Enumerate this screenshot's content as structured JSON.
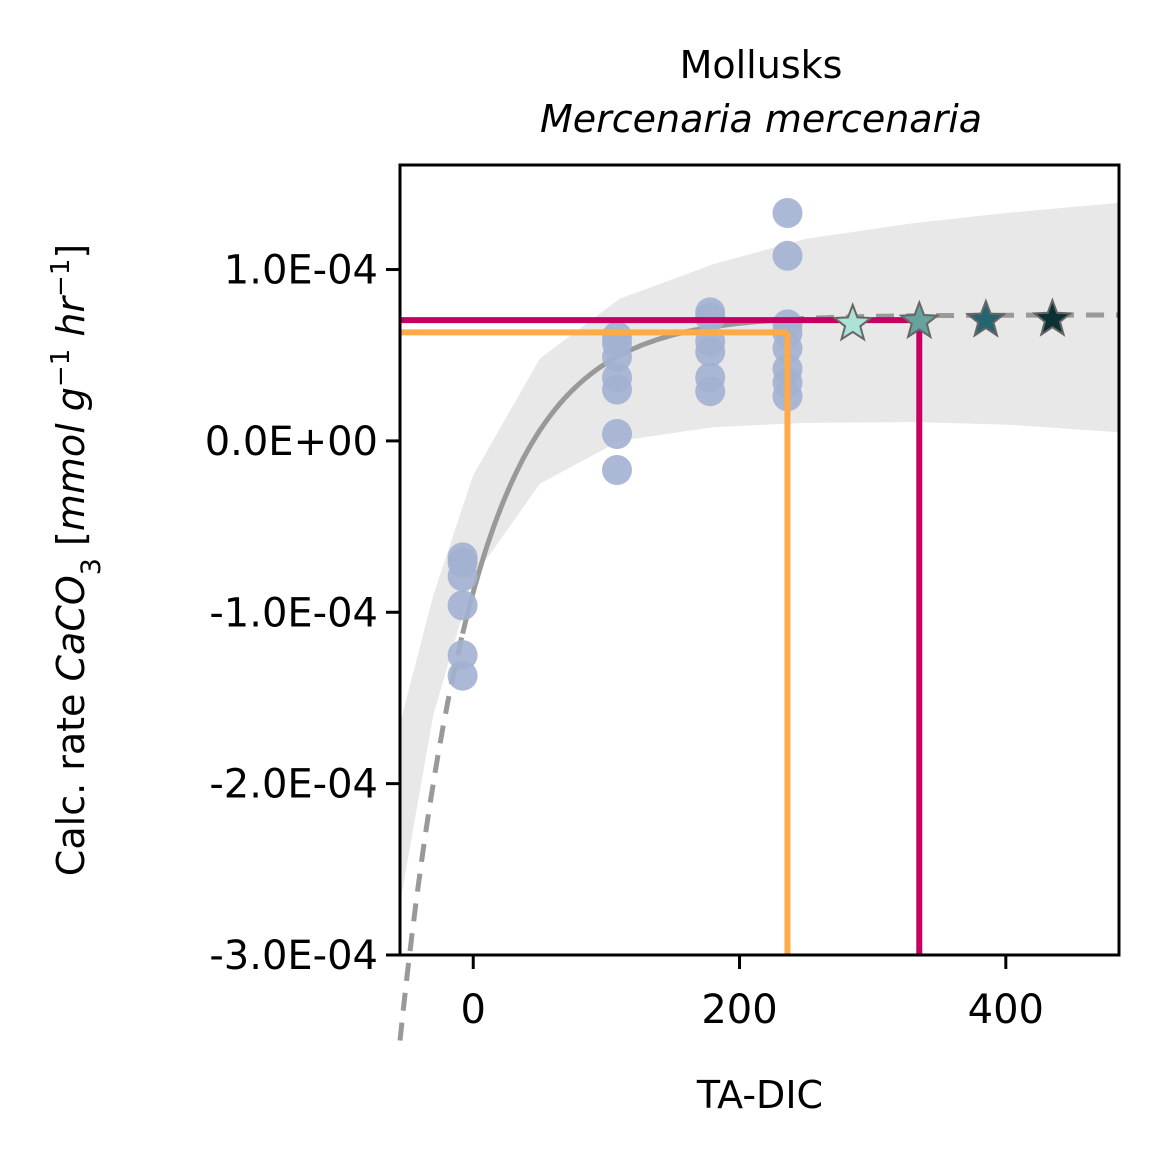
{
  "chart_data": {
    "type": "scatter",
    "title": "Mollusks",
    "subtitle": "Mercenaria mercenaria",
    "xlabel": "TA-DIC",
    "ylabel": {
      "prefix": "Calc. rate ",
      "chem": "CaCO",
      "chem_sub": "3",
      "open": " [",
      "unit1": "mmol g",
      "exp1": "−1",
      "unit2": " hr",
      "exp2": "−1",
      "close": "]"
    },
    "xlim": [
      -55,
      485
    ],
    "ylim": [
      -0.0003,
      0.000161
    ],
    "x_ticks": [
      {
        "value": 0,
        "label": "0"
      },
      {
        "value": 200,
        "label": "200"
      },
      {
        "value": 400,
        "label": "400"
      }
    ],
    "y_ticks": [
      {
        "value": 0.0001,
        "label": "1.0E-04"
      },
      {
        "value": 0,
        "label": "0.0E+00"
      },
      {
        "value": -0.0001,
        "label": "-1.0E-04"
      },
      {
        "value": -0.0002,
        "label": "-2.0E-04"
      },
      {
        "value": -0.0003,
        "label": "-3.0E-04"
      }
    ],
    "fit": {
      "asymptote": 7.35e-05,
      "amplitude": 0.000186,
      "rate": 0.0175,
      "x0": -8,
      "solid_range": [
        -8,
        235
      ],
      "color": "#999999"
    },
    "band": {
      "lower": [
        [
          -55,
          -0.00027
        ],
        [
          -30,
          -0.00016
        ],
        [
          0,
          -8e-05
        ],
        [
          50,
          -2.5e-05
        ],
        [
          110,
          0.0
        ],
        [
          180,
          8e-06
        ],
        [
          250,
          1.05e-05
        ],
        [
          330,
          1.1e-05
        ],
        [
          400,
          9.5e-06
        ],
        [
          485,
          5e-06
        ]
      ],
      "upper": [
        [
          -55,
          -0.000165
        ],
        [
          -30,
          -9e-05
        ],
        [
          0,
          -2e-05
        ],
        [
          50,
          4.8e-05
        ],
        [
          110,
          8.3e-05
        ],
        [
          180,
          0.000103
        ],
        [
          250,
          0.000118
        ],
        [
          330,
          0.000127
        ],
        [
          400,
          0.000133
        ],
        [
          485,
          0.000139
        ]
      ],
      "color": "#e8e8e8"
    },
    "points": {
      "color": "#a3b1d1",
      "data": [
        [
          -8,
          -6.8e-05
        ],
        [
          -8,
          -7.1e-05
        ],
        [
          -8,
          -7.9e-05
        ],
        [
          -8,
          -9.6e-05
        ],
        [
          -8,
          -0.000125
        ],
        [
          -8,
          -0.000137
        ],
        [
          108,
          6.1e-05
        ],
        [
          108,
          5.7e-05
        ],
        [
          108,
          4.9e-05
        ],
        [
          108,
          3.7e-05
        ],
        [
          108,
          3e-05
        ],
        [
          108,
          4e-06
        ],
        [
          108,
          -1.7e-05
        ],
        [
          178,
          7.5e-05
        ],
        [
          178,
          7.2e-05
        ],
        [
          178,
          5.8e-05
        ],
        [
          178,
          5.2e-05
        ],
        [
          178,
          3.7e-05
        ],
        [
          178,
          2.9e-05
        ],
        [
          236,
          0.000133
        ],
        [
          236,
          0.000108
        ],
        [
          236,
          6.8e-05
        ],
        [
          236,
          6.3e-05
        ],
        [
          236,
          5.4e-05
        ],
        [
          236,
          4.2e-05
        ],
        [
          236,
          3.4e-05
        ],
        [
          236,
          2.6e-05
        ]
      ]
    },
    "stars": [
      {
        "x": 285,
        "y": 6.83e-05,
        "color": "#ade3d6"
      },
      {
        "x": 335,
        "y": 6.97e-05,
        "color": "#66a39f"
      },
      {
        "x": 385,
        "y": 7.05e-05,
        "color": "#256570"
      },
      {
        "x": 435,
        "y": 7.1e-05,
        "color": "#0b3135"
      }
    ],
    "reference_lines": [
      {
        "color": "#ffaa46",
        "x": 236,
        "y": 6.33e-05
      },
      {
        "color": "#c60062",
        "x": 335,
        "y": 7.05e-05
      }
    ]
  }
}
